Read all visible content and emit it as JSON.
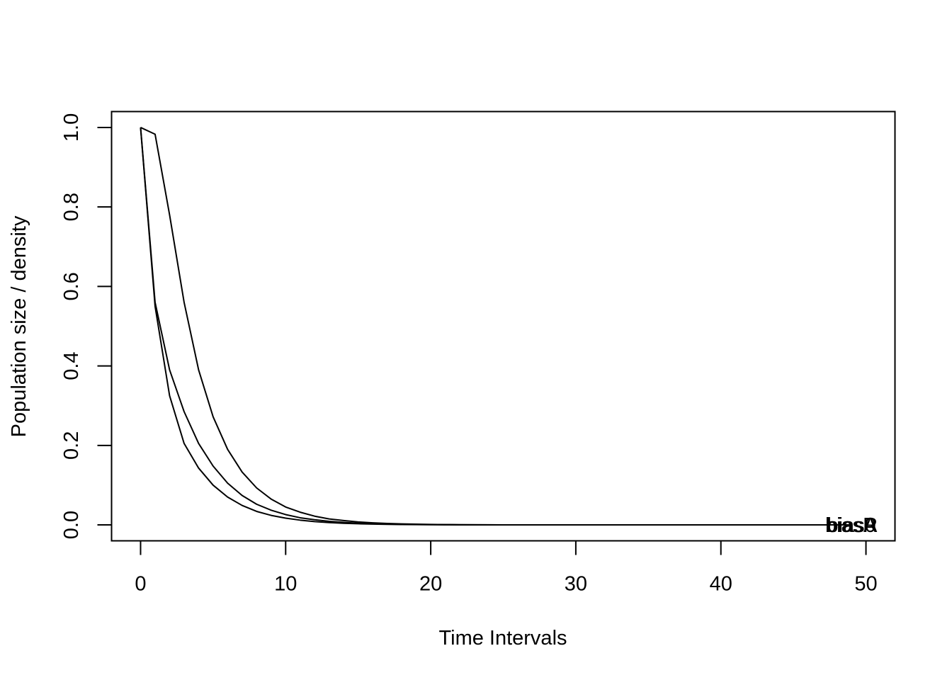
{
  "chart_data": {
    "type": "line",
    "title": "",
    "xlabel": "Time Intervals",
    "ylabel": "Population size / density",
    "xlim": [
      -2,
      52
    ],
    "ylim": [
      -0.04,
      1.04
    ],
    "xticks": [
      0,
      10,
      20,
      30,
      40,
      50
    ],
    "yticks": [
      0.0,
      0.2,
      0.4,
      0.6,
      0.8,
      1.0
    ],
    "xtick_labels": [
      "0",
      "10",
      "20",
      "30",
      "40",
      "50"
    ],
    "ytick_labels": [
      "0.0",
      "0.2",
      "0.4",
      "0.6",
      "0.8",
      "1.0"
    ],
    "grid": false,
    "line_color": "#000000",
    "end_labels": [
      {
        "text": "biasA",
        "x": 49,
        "y": 0.0
      },
      {
        "text": "bias0",
        "x": 49,
        "y": 0.0
      },
      {
        "text": "biasR",
        "x": 49,
        "y": 0.0
      }
    ],
    "series": [
      {
        "x": [
          0,
          1,
          2,
          3,
          4,
          5,
          6,
          7,
          8,
          9,
          10,
          11,
          12,
          13,
          14,
          15,
          16,
          17,
          18,
          19,
          20,
          21,
          22,
          23,
          24,
          25,
          26,
          27,
          28,
          29,
          30,
          31,
          32,
          33,
          34,
          35,
          36,
          37,
          38,
          39,
          40,
          41,
          42,
          43,
          44,
          45,
          46,
          47,
          48,
          49
        ],
        "values": [
          1.0,
          0.983,
          0.78,
          0.56,
          0.39,
          0.272,
          0.19,
          0.133,
          0.093,
          0.065,
          0.045,
          0.032,
          0.022,
          0.015,
          0.011,
          0.0075,
          0.0052,
          0.0036,
          0.0025,
          0.0018,
          0.0012,
          0.0008,
          0.0006,
          0.0004,
          0.0003,
          0.0002,
          0.0001,
          0.0001,
          0.0001,
          0,
          0,
          0,
          0,
          0,
          0,
          0,
          0,
          0,
          0,
          0,
          0,
          0,
          0,
          0,
          0,
          0,
          0,
          0,
          0,
          0
        ]
      },
      {
        "x": [
          0,
          1,
          2,
          3,
          4,
          5,
          6,
          7,
          8,
          9,
          10,
          11,
          12,
          13,
          14,
          15,
          16,
          17,
          18,
          19,
          20,
          21,
          22,
          23,
          24,
          25,
          26,
          27,
          28,
          29,
          30,
          31,
          32,
          33,
          34,
          35,
          36,
          37,
          38,
          39,
          40,
          41,
          42,
          43,
          44,
          45,
          46,
          47,
          48,
          49
        ],
        "values": [
          1.0,
          0.56,
          0.39,
          0.285,
          0.205,
          0.148,
          0.105,
          0.074,
          0.052,
          0.037,
          0.026,
          0.018,
          0.013,
          0.009,
          0.0063,
          0.0044,
          0.0031,
          0.0022,
          0.0015,
          0.0011,
          0.0008,
          0.0005,
          0.0004,
          0.0003,
          0.0002,
          0.0001,
          0.0001,
          0,
          0,
          0,
          0,
          0,
          0,
          0,
          0,
          0,
          0,
          0,
          0,
          0,
          0,
          0,
          0,
          0,
          0,
          0,
          0,
          0,
          0,
          0
        ]
      },
      {
        "x": [
          0,
          1,
          2,
          3,
          4,
          5,
          6,
          7,
          8,
          9,
          10,
          11,
          12,
          13,
          14,
          15,
          16,
          17,
          18,
          19,
          20,
          21,
          22,
          23,
          24,
          25,
          26,
          27,
          28,
          29,
          30,
          31,
          32,
          33,
          34,
          35,
          36,
          37,
          38,
          39,
          40,
          41,
          42,
          43,
          44,
          45,
          46,
          47,
          48,
          49
        ],
        "values": [
          1.0,
          0.55,
          0.325,
          0.205,
          0.143,
          0.1,
          0.07,
          0.049,
          0.034,
          0.024,
          0.017,
          0.012,
          0.0083,
          0.0058,
          0.0041,
          0.0029,
          0.002,
          0.0014,
          0.001,
          0.0007,
          0.0005,
          0.0003,
          0.0002,
          0.0002,
          0.0001,
          0.0001,
          0,
          0,
          0,
          0,
          0,
          0,
          0,
          0,
          0,
          0,
          0,
          0,
          0,
          0,
          0,
          0,
          0,
          0,
          0,
          0,
          0,
          0,
          0,
          0
        ]
      }
    ]
  }
}
